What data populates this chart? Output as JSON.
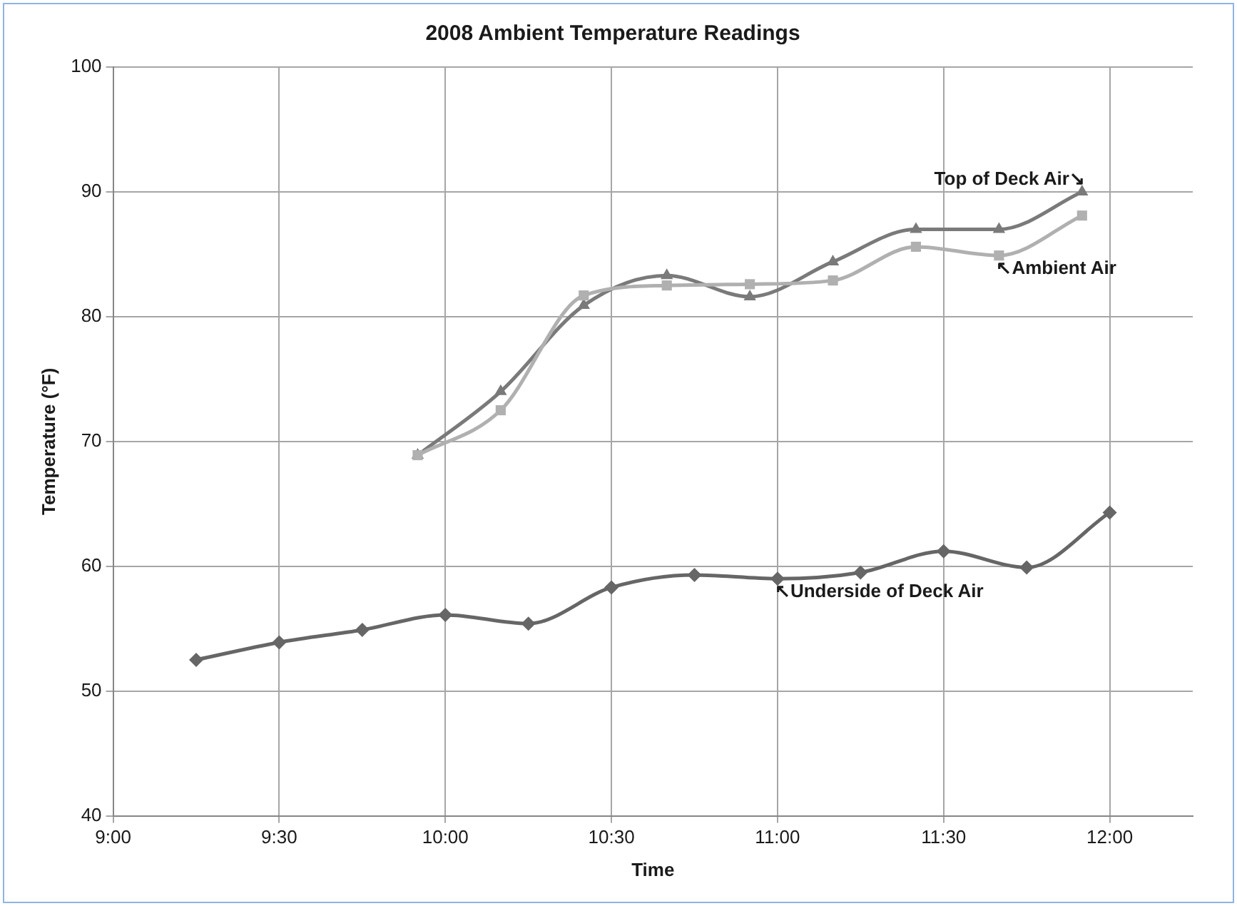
{
  "chart_data": {
    "type": "line",
    "title": "2008 Ambient Temperature Readings",
    "xlabel": "Time",
    "ylabel": "Temperature (°F)",
    "series": [
      {
        "color": "#666666",
        "marker": "diamond",
        "x": [
          9.25,
          9.5,
          9.75,
          10,
          10.25,
          10.5,
          10.75,
          11,
          11.25,
          11.5,
          11.75,
          12
        ],
        "values": [
          52.5,
          53.9,
          54.9,
          56.1,
          55.4,
          58.3,
          59.3,
          59.0,
          59.5,
          61.2,
          59.9,
          64.3
        ]
      },
      {
        "color": "#b0b0b0",
        "marker": "square",
        "x": [
          9.9167,
          10.1667,
          10.4167,
          10.6667,
          10.9167,
          11.1667,
          11.4167,
          11.6667,
          11.9167
        ],
        "values": [
          68.9,
          72.5,
          81.7,
          82.5,
          82.6,
          82.9,
          85.6,
          84.9,
          88.1
        ]
      },
      {
        "color": "#7a7a7a",
        "marker": "triangle",
        "x": [
          9.9167,
          10.1667,
          10.4167,
          10.6667,
          10.9167,
          11.1667,
          11.4167,
          11.6667,
          11.9167
        ],
        "values": [
          68.9,
          74.0,
          80.9,
          83.3,
          81.6,
          84.4,
          87.0,
          87.0,
          90.0
        ]
      }
    ],
    "xlim": [
      9,
      12.25
    ],
    "xticks": [
      {
        "value": 9,
        "label": "9:00"
      },
      {
        "value": 9.5,
        "label": "9:30"
      },
      {
        "value": 10,
        "label": "10:00"
      },
      {
        "value": 10.5,
        "label": "10:30"
      },
      {
        "value": 11,
        "label": "11:00"
      },
      {
        "value": 11.5,
        "label": "11:30"
      },
      {
        "value": 12,
        "label": "12:00"
      }
    ],
    "ylim": [
      40,
      100
    ],
    "yticks": [
      40,
      50,
      60,
      70,
      80,
      90,
      100
    ],
    "grid": true,
    "legend": false,
    "annotations": [
      {
        "text": "↖Underside of Deck Air",
        "x": 11,
        "y": 59.0
      },
      {
        "text": "↖Ambient Air",
        "x": 11.6667,
        "y": 84.9
      },
      {
        "text": "Top of Deck Air↘",
        "x": 11.9167,
        "y": 90.0
      }
    ]
  }
}
